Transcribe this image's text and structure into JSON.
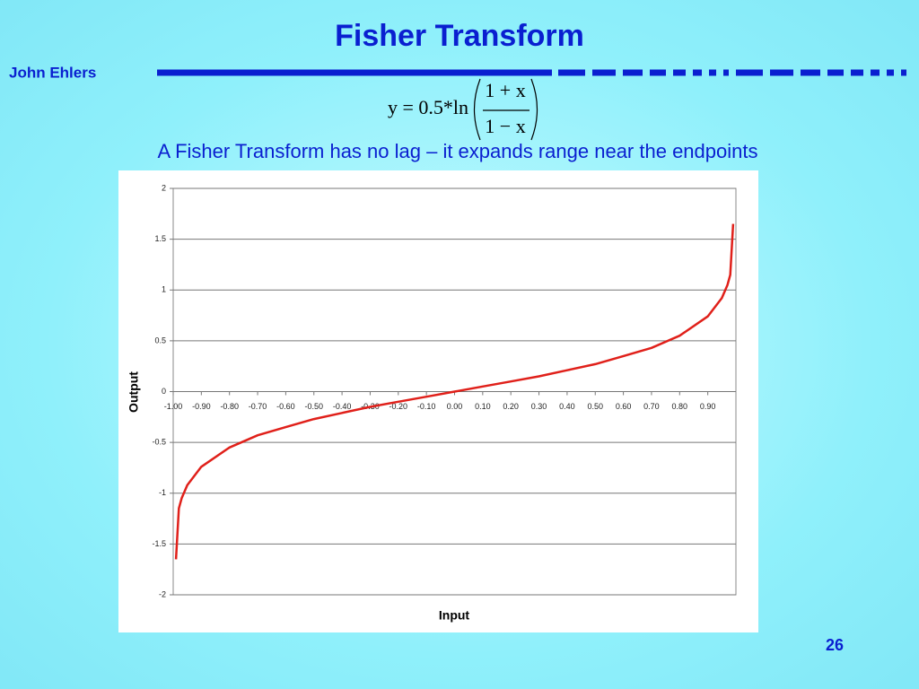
{
  "slide": {
    "title": "Fisher Transform",
    "author": "John Ehlers",
    "formula": {
      "lhs": "y = 0.5*ln",
      "numerator": "1 + x",
      "denominator": "1 − x"
    },
    "subtitle": "A Fisher Transform has no lag – it expands range near the endpoints",
    "page_number": "26"
  },
  "chart_data": {
    "type": "line",
    "x_label": "Input",
    "y_label": "Output",
    "x": [
      -0.99,
      -0.98,
      -0.97,
      -0.95,
      -0.9,
      -0.8,
      -0.7,
      -0.6,
      -0.5,
      -0.4,
      -0.3,
      -0.2,
      -0.1,
      0,
      0.1,
      0.2,
      0.3,
      0.4,
      0.5,
      0.6,
      0.7,
      0.8,
      0.9,
      0.95,
      0.97,
      0.98,
      0.99
    ],
    "values": [
      -1.65,
      -1.15,
      -1.05,
      -0.92,
      -0.74,
      -0.55,
      -0.43,
      -0.35,
      -0.27,
      -0.21,
      -0.15,
      -0.1,
      -0.05,
      0,
      0.05,
      0.1,
      0.15,
      0.21,
      0.27,
      0.35,
      0.43,
      0.55,
      0.74,
      0.92,
      1.05,
      1.15,
      1.65
    ],
    "color": "#e0201a",
    "xlim": [
      -1,
      1
    ],
    "ylim": [
      -2,
      2
    ],
    "xticks": [
      {
        "value": -1,
        "label": "-1.00"
      },
      {
        "value": -0.9,
        "label": "-0.90"
      },
      {
        "value": -0.8,
        "label": "-0.80"
      },
      {
        "value": -0.7,
        "label": "-0.70"
      },
      {
        "value": -0.6,
        "label": "-0.60"
      },
      {
        "value": -0.5,
        "label": "-0.50"
      },
      {
        "value": -0.4,
        "label": "-0.40"
      },
      {
        "value": -0.3,
        "label": "-0.30"
      },
      {
        "value": -0.2,
        "label": "-0.20"
      },
      {
        "value": -0.1,
        "label": "-0.10"
      },
      {
        "value": 0,
        "label": "0.00"
      },
      {
        "value": 0.1,
        "label": "0.10"
      },
      {
        "value": 0.2,
        "label": "0.20"
      },
      {
        "value": 0.3,
        "label": "0.30"
      },
      {
        "value": 0.4,
        "label": "0.40"
      },
      {
        "value": 0.5,
        "label": "0.50"
      },
      {
        "value": 0.6,
        "label": "0.60"
      },
      {
        "value": 0.7,
        "label": "0.70"
      },
      {
        "value": 0.8,
        "label": "0.80"
      },
      {
        "value": 0.9,
        "label": "0.90"
      }
    ],
    "yticks": [
      -2,
      -1.5,
      -1,
      -0.5,
      0,
      0.5,
      1,
      1.5,
      2
    ],
    "grid": true
  }
}
